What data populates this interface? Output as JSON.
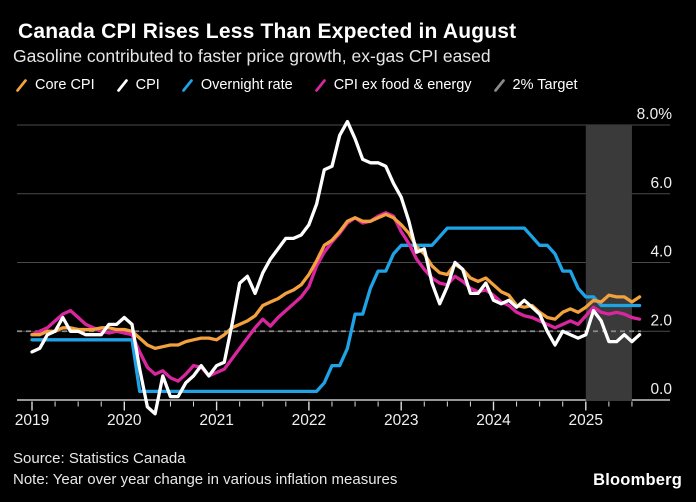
{
  "header": {
    "title": "Canada CPI Rises Less Than Expected in August",
    "subtitle": "Gasoline contributed to faster price growth, ex-gas CPI eased"
  },
  "legend": [
    {
      "label": "Core CPI",
      "color": "#F2A13C"
    },
    {
      "label": "CPI",
      "color": "#FFFFFF"
    },
    {
      "label": "Overnight rate",
      "color": "#1EA3E6"
    },
    {
      "label": "CPI ex food & energy",
      "color": "#D9269E"
    },
    {
      "label": "2% Target",
      "color": "#8A8A8A"
    }
  ],
  "footer": {
    "source": "Source: Statistics Canada",
    "note": "Note: Year over year change in various inflation measures",
    "brand": "Bloomberg"
  },
  "colors": {
    "background": "#000000",
    "grid": "#4A4A4A",
    "axis": "#C9C9C9",
    "tick": "#DDDDDD",
    "axis_label": "#F0F0F0",
    "highlight_band": "#3A3A3A",
    "target": "#8A8A8A"
  },
  "chart_data": {
    "type": "line",
    "frequency": "monthly",
    "x_start": "2019-01",
    "x_end": "2025-08",
    "x_tick_labels": [
      "2019",
      "2020",
      "2021",
      "2022",
      "2023",
      "2024",
      "2025"
    ],
    "y_ticks": [
      {
        "label": "8.0%",
        "value": 8
      },
      {
        "label": "6.0",
        "value": 6
      },
      {
        "label": "4.0",
        "value": 4
      },
      {
        "label": "2.0",
        "value": 2
      },
      {
        "label": "0.0",
        "value": 0
      }
    ],
    "ylim": [
      -0.5,
      8.3
    ],
    "grid": "horizontal",
    "legend_position": "top",
    "highlight_band": {
      "from": "2025-01",
      "to": "2025-07",
      "color": "#3A3A3A"
    },
    "target_line": {
      "label": "2% Target",
      "value": 2.0,
      "style": "dashed",
      "color": "#8A8A8A"
    },
    "series": [
      {
        "name": "Core CPI",
        "color": "#F2A13C",
        "values": [
          1.9,
          1.9,
          2.0,
          2.0,
          2.1,
          2.1,
          2.05,
          2.05,
          2.05,
          2.1,
          2.1,
          2.05,
          2.05,
          2.0,
          1.8,
          1.6,
          1.5,
          1.55,
          1.6,
          1.6,
          1.7,
          1.75,
          1.8,
          1.8,
          1.75,
          1.9,
          2.1,
          2.2,
          2.3,
          2.45,
          2.75,
          2.85,
          2.95,
          3.1,
          3.2,
          3.35,
          3.65,
          4.05,
          4.5,
          4.65,
          4.9,
          5.2,
          5.3,
          5.2,
          5.2,
          5.3,
          5.4,
          5.3,
          5.1,
          4.85,
          4.45,
          4.25,
          3.9,
          3.7,
          3.65,
          3.95,
          3.8,
          3.55,
          3.45,
          3.55,
          3.35,
          3.15,
          3.05,
          2.75,
          2.7,
          2.75,
          2.55,
          2.4,
          2.35,
          2.55,
          2.65,
          2.55,
          2.7,
          2.9,
          2.85,
          3.05,
          3.0,
          3.0,
          2.85,
          3.0
        ]
      },
      {
        "name": "CPI",
        "color": "#FFFFFF",
        "values": [
          1.4,
          1.5,
          1.9,
          2.0,
          2.4,
          2.0,
          2.0,
          1.9,
          1.9,
          1.9,
          2.2,
          2.2,
          2.4,
          2.2,
          0.9,
          -0.2,
          -0.4,
          0.7,
          0.1,
          0.1,
          0.5,
          0.7,
          1.0,
          0.7,
          1.0,
          1.1,
          2.2,
          3.4,
          3.6,
          3.1,
          3.7,
          4.1,
          4.4,
          4.7,
          4.7,
          4.8,
          5.1,
          5.7,
          6.7,
          6.8,
          7.7,
          8.1,
          7.6,
          7.0,
          6.9,
          6.9,
          6.8,
          6.3,
          5.9,
          5.2,
          4.3,
          4.4,
          3.4,
          2.8,
          3.3,
          4.0,
          3.8,
          3.1,
          3.1,
          3.4,
          2.9,
          2.8,
          2.9,
          2.7,
          2.9,
          2.7,
          2.5,
          2.0,
          1.6,
          2.0,
          1.9,
          1.8,
          1.9,
          2.6,
          2.3,
          1.7,
          1.7,
          1.9,
          1.7,
          1.9
        ]
      },
      {
        "name": "Overnight rate",
        "color": "#1EA3E6",
        "values": [
          1.75,
          1.75,
          1.75,
          1.75,
          1.75,
          1.75,
          1.75,
          1.75,
          1.75,
          1.75,
          1.75,
          1.75,
          1.75,
          1.75,
          0.25,
          0.25,
          0.25,
          0.25,
          0.25,
          0.25,
          0.25,
          0.25,
          0.25,
          0.25,
          0.25,
          0.25,
          0.25,
          0.25,
          0.25,
          0.25,
          0.25,
          0.25,
          0.25,
          0.25,
          0.25,
          0.25,
          0.25,
          0.25,
          0.5,
          1.0,
          1.0,
          1.5,
          2.5,
          2.5,
          3.25,
          3.75,
          3.75,
          4.25,
          4.5,
          4.5,
          4.5,
          4.5,
          4.5,
          4.75,
          5.0,
          5.0,
          5.0,
          5.0,
          5.0,
          5.0,
          5.0,
          5.0,
          5.0,
          5.0,
          5.0,
          4.75,
          4.5,
          4.5,
          4.25,
          3.75,
          3.75,
          3.25,
          3.0,
          3.0,
          2.75,
          2.75,
          2.75,
          2.75,
          2.75,
          2.75
        ]
      },
      {
        "name": "CPI ex food & energy",
        "color": "#D9269E",
        "values": [
          1.9,
          2.0,
          2.1,
          2.3,
          2.5,
          2.6,
          2.4,
          2.2,
          2.1,
          2.0,
          1.95,
          2.0,
          1.95,
          1.9,
          1.4,
          0.95,
          0.75,
          0.85,
          0.65,
          0.55,
          0.75,
          1.0,
          0.95,
          0.7,
          0.8,
          0.9,
          1.2,
          1.5,
          1.8,
          2.1,
          2.35,
          2.15,
          2.4,
          2.6,
          2.8,
          3.0,
          3.3,
          3.9,
          4.3,
          4.6,
          4.85,
          5.15,
          5.3,
          5.15,
          5.2,
          5.35,
          5.45,
          5.35,
          4.9,
          4.55,
          4.1,
          3.8,
          3.55,
          3.4,
          3.35,
          3.6,
          3.45,
          3.25,
          3.15,
          3.2,
          3.05,
          2.85,
          2.75,
          2.55,
          2.45,
          2.4,
          2.3,
          2.2,
          2.1,
          2.2,
          2.3,
          2.2,
          2.45,
          2.7,
          2.55,
          2.5,
          2.55,
          2.5,
          2.4,
          2.35
        ]
      }
    ]
  }
}
